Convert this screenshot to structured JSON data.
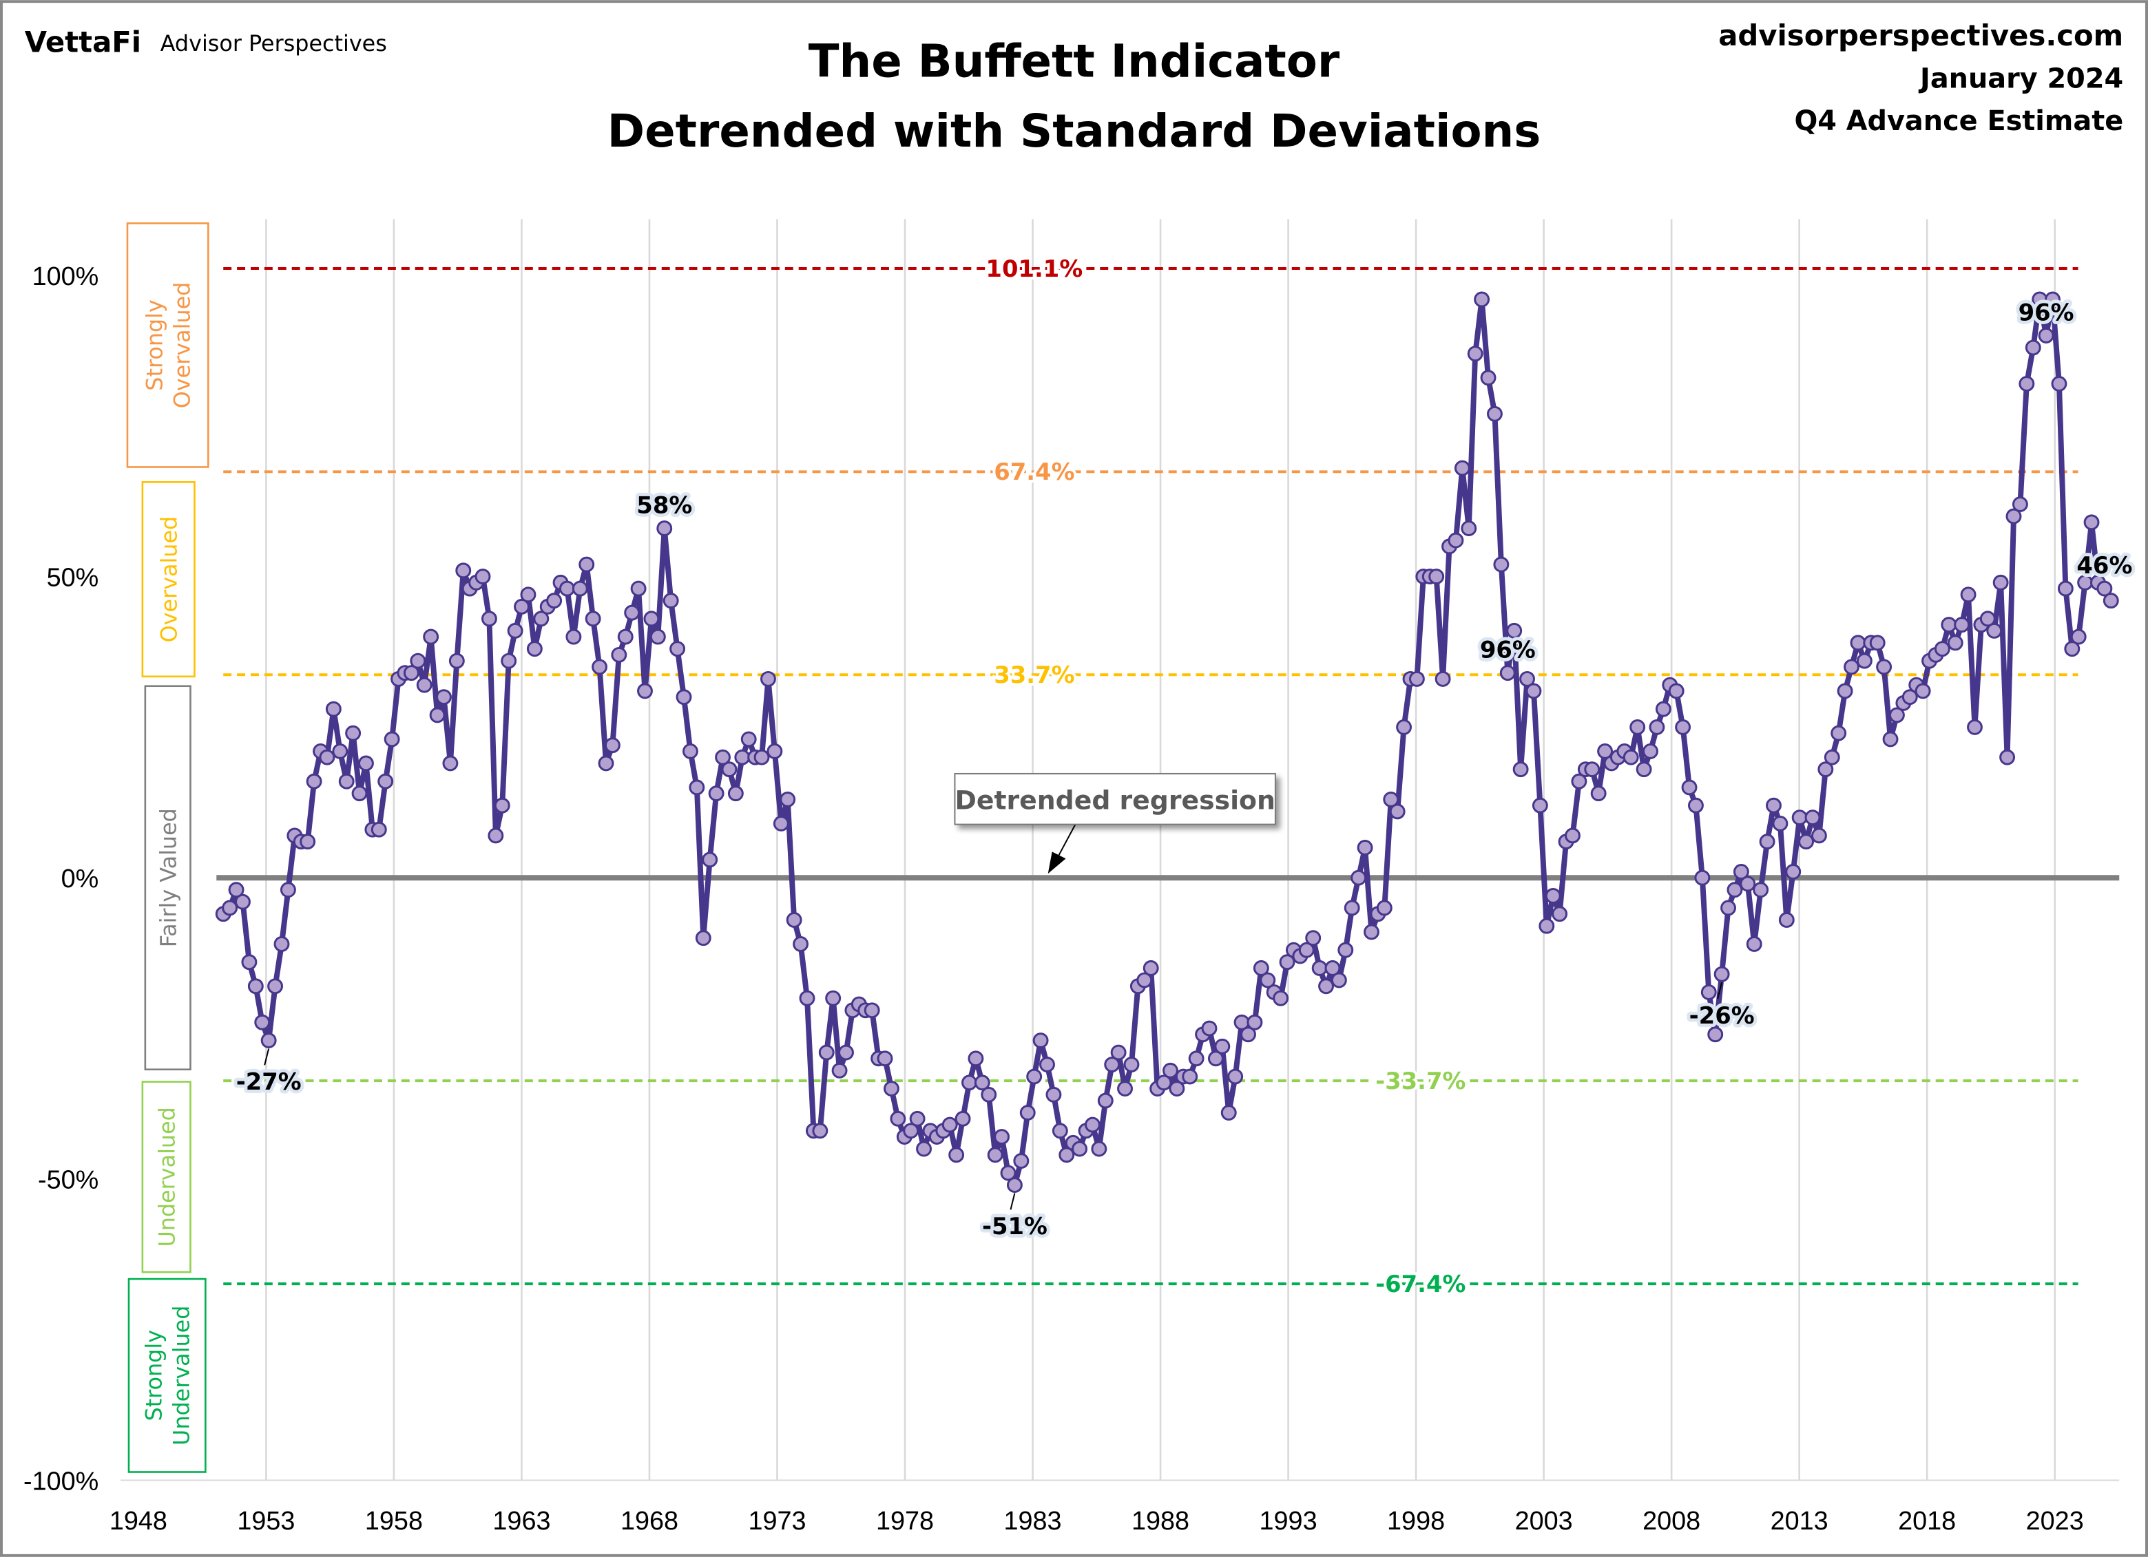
{
  "header": {
    "brand": "VettaFi",
    "brand_sub": "Advisor Perspectives",
    "site": "advisorperspectives.com",
    "date": "January 2024",
    "estimate": "Q4 Advance Estimate"
  },
  "chart_data": {
    "type": "line",
    "title": "The Buffett Indicator",
    "subtitle": "Detrended with Standard Deviations",
    "frequency": "quarterly",
    "x_tick_labels": [
      "1948",
      "1953",
      "1958",
      "1963",
      "1968",
      "1973",
      "1978",
      "1983",
      "1988",
      "1993",
      "1998",
      "2003",
      "2008",
      "2013",
      "2018",
      "2023"
    ],
    "y_tick_labels": [
      "100%",
      "50%",
      "0%",
      "-50%",
      "-100%"
    ],
    "y_ticks": [
      100,
      50,
      0,
      -50,
      -100
    ],
    "ylim": [
      -100,
      100
    ],
    "grid": "vertical",
    "line_color": "#46368c",
    "marker_color": "#b3a2cf",
    "values": [
      -6,
      -5,
      -2,
      -4,
      -14,
      -18,
      -24,
      -27,
      -18,
      -11,
      -2,
      7,
      6,
      6,
      16,
      21,
      20,
      28,
      21,
      16,
      24,
      14,
      19,
      8,
      8,
      16,
      23,
      33,
      34,
      34,
      36,
      32,
      40,
      27,
      30,
      19,
      36,
      51,
      48,
      49,
      50,
      43,
      7,
      12,
      36,
      41,
      45,
      47,
      38,
      43,
      45,
      46,
      49,
      48,
      40,
      48,
      52,
      43,
      35,
      19,
      22,
      37,
      40,
      44,
      48,
      31,
      43,
      40,
      58,
      46,
      38,
      30,
      21,
      15,
      -10,
      3,
      14,
      20,
      18,
      14,
      20,
      23,
      20,
      20,
      33,
      21,
      9,
      13,
      -7,
      -11,
      -20,
      -42,
      -42,
      -29,
      -20,
      -32,
      -29,
      -22,
      -21,
      -22,
      -22,
      -30,
      -30,
      -35,
      -40,
      -43,
      -42,
      -40,
      -45,
      -42,
      -43,
      -42,
      -41,
      -46,
      -40,
      -34,
      -30,
      -34,
      -36,
      -46,
      -43,
      -49,
      -51,
      -47,
      -39,
      -33,
      -27,
      -31,
      -36,
      -42,
      -46,
      -44,
      -45,
      -42,
      -41,
      -45,
      -37,
      -31,
      -29,
      -35,
      -31,
      -18,
      -17,
      -15,
      -35,
      -34,
      -32,
      -35,
      -33,
      -33,
      -30,
      -26,
      -25,
      -30,
      -28,
      -39,
      -33,
      -24,
      -26,
      -24,
      -15,
      -17,
      -19,
      -20,
      -14,
      -12,
      -13,
      -12,
      -10,
      -15,
      -18,
      -15,
      -17,
      -12,
      -5,
      0,
      5,
      -9,
      -6,
      -5,
      13,
      11,
      25,
      33,
      33,
      50,
      50,
      50,
      33,
      55,
      56,
      68,
      58,
      87,
      96,
      83,
      77,
      52,
      34,
      41,
      18,
      33,
      31,
      12,
      -8,
      -3,
      -6,
      6,
      7,
      16,
      18,
      18,
      14,
      21,
      19,
      20,
      21,
      20,
      25,
      18,
      21,
      25,
      28,
      32,
      31,
      25,
      15,
      12,
      0,
      -19,
      -26,
      -16,
      -5,
      -2,
      1,
      -1,
      -11,
      -2,
      6,
      12,
      9,
      -7,
      1,
      10,
      6,
      10,
      7,
      18,
      20,
      24,
      31,
      35,
      39,
      36,
      39,
      39,
      35,
      23,
      27,
      29,
      30,
      32,
      31,
      36,
      37,
      38,
      42,
      39,
      42,
      47,
      25,
      42,
      43,
      41,
      49,
      20,
      60,
      62,
      82,
      88,
      96,
      90,
      96,
      82,
      48,
      38,
      40,
      49,
      59,
      49,
      48,
      46
    ],
    "reference_lines": [
      {
        "value": 101.1,
        "label": "101.1%",
        "color": "#c00000"
      },
      {
        "value": 67.4,
        "label": "67.4%",
        "color": "#f79646"
      },
      {
        "value": 33.7,
        "label": "33.7%",
        "color": "#ffc000"
      },
      {
        "value": -33.7,
        "label": "-33.7%",
        "color": "#92d050"
      },
      {
        "value": -67.4,
        "label": "-67.4%",
        "color": "#00b050"
      }
    ],
    "regression_line": {
      "value": 0,
      "label": "Detrended regression",
      "color": "#808080"
    },
    "bands": [
      {
        "label": "Strongly Overvalued",
        "lines": [
          "Strongly",
          "Overvalued"
        ],
        "color": "#f79646"
      },
      {
        "label": "Overvalued",
        "lines": [
          "Overvalued"
        ],
        "color": "#ffc000"
      },
      {
        "label": "Fairly Valued",
        "lines": [
          "Fairly Valued"
        ],
        "color": "#7f7f7f"
      },
      {
        "label": "Undervalued",
        "lines": [
          "Undervalued"
        ],
        "color": "#92d050"
      },
      {
        "label": "Strongly Undervalued",
        "lines": [
          "Strongly",
          "Undervalued"
        ],
        "color": "#00b050"
      }
    ],
    "annotations": [
      {
        "label": "-27%",
        "index": 7
      },
      {
        "label": "58%",
        "index": 68
      },
      {
        "label": "-51%",
        "index": 122
      },
      {
        "label": "96%",
        "index": 198
      },
      {
        "label": "-26%",
        "index": 231
      },
      {
        "label": "96%",
        "index": 281
      },
      {
        "label": "46%",
        "index": 290
      }
    ]
  }
}
